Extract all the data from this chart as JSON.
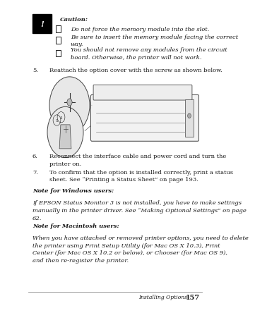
{
  "bg_color": "#ffffff",
  "caution_title": "Caution:",
  "caution_bullets": [
    "Do not force the memory module into the slot.",
    "Be sure to insert the memory module facing the correct\nway.",
    "You should not remove any modules from the circuit\nboard. Otherwise, the printer will not work."
  ],
  "step5_text": "5. Reattach the option cover with the screw as shown below.",
  "step6_num": "6.",
  "step6_text": "Reconnect the interface cable and power cord and turn the\nprinter on.",
  "step7_num": "7.",
  "step7_text": "To confirm that the option is installed correctly, print a status\nsheet. See “Printing a Status Sheet” on page 193.",
  "note_win_title": "Note for Windows users:",
  "note_win_text": "If EPSON Status Monitor 3 is not installed, you have to make settings\nmanually in the printer driver. See “Making Optional Settings” on page\n62.",
  "note_mac_title": "Note for Macintosh users:",
  "note_mac_text": "When you have attached or removed printer options, you need to delete\nthe printer using Print Setup Utility (for Mac OS X 10.3), Print\nCenter (for Mac OS X 10.2 or below), or Chooser (for Mac OS 9),\nand then re-register the printer.",
  "footer_text": "Installing Options",
  "footer_page": "157",
  "text_color": "#1a1a1a",
  "font_size_body": 6.0,
  "font_size_footer": 5.5
}
